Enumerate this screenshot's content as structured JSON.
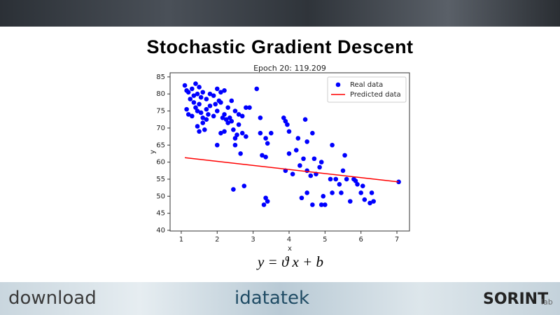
{
  "slide_title": "Stochastic Gradient Descent",
  "formula": "y = ϑ x + b",
  "logos": [
    "download",
    "idatatek",
    "SORINT",
    "lab"
  ],
  "chart_data": {
    "type": "scatter",
    "title": "Epoch 20: 119.209",
    "x_label": "x",
    "y_label": "y",
    "xlim": [
      0.69,
      7.35
    ],
    "ylim": [
      39.8,
      86.2
    ],
    "xticks": [
      1,
      2,
      3,
      4,
      5,
      6,
      7
    ],
    "yticks": [
      40,
      45,
      50,
      55,
      60,
      65,
      70,
      75,
      80,
      85
    ],
    "legend": "upper right",
    "series": [
      {
        "name": "Real data",
        "color": "#0000ff",
        "type": "scatter",
        "x": [
          1.1,
          1.15,
          1.2,
          1.3,
          1.35,
          1.4,
          1.45,
          1.5,
          1.55,
          1.6,
          1.7,
          1.8,
          1.9,
          2.0,
          2.1,
          2.2,
          2.05,
          1.15,
          1.2,
          1.3,
          1.4,
          1.45,
          1.5,
          1.55,
          1.6,
          1.7,
          1.75,
          1.8,
          1.9,
          2.0,
          2.1,
          2.2,
          2.3,
          2.35,
          2.4,
          2.5,
          2.6,
          2.7,
          2.8,
          2.9,
          2.4,
          2.3,
          2.6,
          1.45,
          1.5,
          1.65,
          2.1,
          2.2,
          2.45,
          2.55,
          2.7,
          2.8,
          2.0,
          2.5,
          2.65,
          2.5,
          2.15,
          2.25,
          3.1,
          3.2,
          3.2,
          3.35,
          3.4,
          3.5,
          3.25,
          3.35,
          2.45,
          2.75,
          3.3,
          3.35,
          3.4,
          3.85,
          3.9,
          3.95,
          4.0,
          3.9,
          4.0,
          4.1,
          4.2,
          4.25,
          4.3,
          4.4,
          4.45,
          4.5,
          4.5,
          4.6,
          4.65,
          4.7,
          4.75,
          4.85,
          4.9,
          4.35,
          4.5,
          4.65,
          4.9,
          4.95,
          5.0,
          5.2,
          5.15,
          5.2,
          5.3,
          5.4,
          5.45,
          5.5,
          5.55,
          5.6,
          5.7,
          5.8,
          5.85,
          5.9,
          6.0,
          6.05,
          6.1,
          6.3,
          6.35,
          6.25,
          7.05,
          1.95,
          1.35,
          1.25,
          1.6,
          1.7
        ],
        "values": [
          82.5,
          81,
          80.5,
          81.5,
          79.5,
          83,
          80,
          82,
          79,
          80.5,
          78.5,
          80,
          79.5,
          81.5,
          80.5,
          81,
          78,
          75.5,
          74,
          73.5,
          76,
          75,
          77,
          74.5,
          73,
          75.5,
          74,
          76.5,
          73.5,
          75,
          77.5,
          74,
          76,
          73,
          78,
          75,
          74,
          73.5,
          76,
          76,
          72,
          71.5,
          71,
          70.5,
          69,
          69.5,
          68.5,
          69,
          69.5,
          68,
          68.5,
          67.5,
          65,
          65,
          62.5,
          67,
          73,
          72.5,
          81.5,
          73,
          68.5,
          67,
          65.5,
          68.5,
          62,
          61.5,
          52,
          53,
          47.5,
          49.5,
          48.5,
          73,
          72,
          71,
          69,
          57.5,
          62.5,
          56.5,
          63.5,
          67,
          59,
          61,
          72.5,
          66,
          57.5,
          56,
          68.5,
          61,
          56.5,
          58.5,
          60,
          49.5,
          51,
          47.5,
          47.5,
          50,
          47.5,
          65,
          55,
          51,
          55,
          53.5,
          51,
          57.5,
          62,
          55,
          48.5,
          55,
          54.5,
          53.5,
          51,
          53,
          49,
          51,
          48.5,
          48,
          54.2,
          77,
          77.5,
          78.5,
          71.5,
          72.5
        ]
      },
      {
        "name": "Predicted data",
        "color": "#ff0000",
        "type": "line",
        "x": [
          1.1,
          7.05
        ],
        "values": [
          61.3,
          54.2
        ]
      }
    ]
  }
}
